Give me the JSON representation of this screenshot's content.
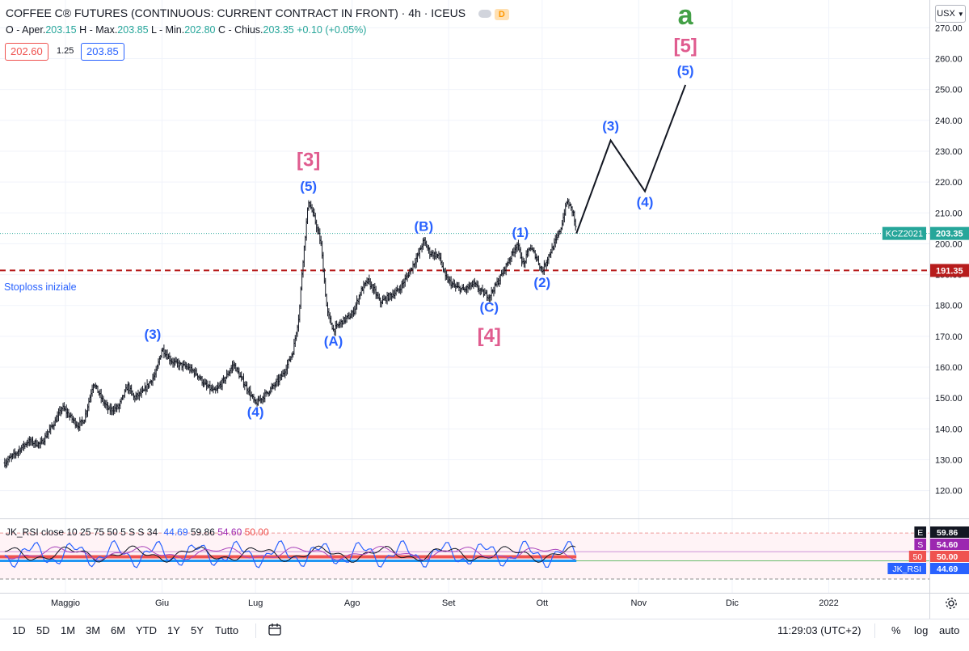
{
  "header": {
    "title": "COFFEE C® FUTURES (CONTINUOUS: CURRENT CONTRACT IN FRONT) · 4h · ICEUS",
    "badge_green": "",
    "badge_orange": "D",
    "ohlc": [
      {
        "label": "O - Aper.",
        "value": "203.15"
      },
      {
        "label": "H - Max.",
        "value": "203.85"
      },
      {
        "label": "L - Min.",
        "value": "202.80"
      },
      {
        "label": "C - Chius.",
        "value": "203.35"
      },
      {
        "label": "",
        "value": "+0.10 (+0.05%)"
      }
    ],
    "bid": "202.60",
    "spread": "1.25",
    "ask": "203.85",
    "currency": "USX"
  },
  "colors": {
    "up": "#26a69a",
    "down": "#ef5350",
    "bar": "#131722",
    "wave_blue": "#2962ff",
    "wave_pink": "#e05c8f",
    "wave_green": "#43a047",
    "stoploss": "#b71c1c"
  },
  "chart_data": {
    "type": "ohlc",
    "title": "COFFEE C® FUTURES (CONTINUOUS: CURRENT CONTRACT IN FRONT)",
    "interval": "4h",
    "exchange": "ICEUS",
    "xlabel": "",
    "ylabel": "",
    "ylim": [
      111,
      279
    ],
    "y_ticks": [
      "120.00",
      "130.00",
      "140.00",
      "150.00",
      "160.00",
      "170.00",
      "180.00",
      "190.00",
      "200.00",
      "210.00",
      "220.00",
      "230.00",
      "240.00",
      "250.00",
      "260.00",
      "270.00"
    ],
    "x_ticks": [
      "Maggio",
      "Giu",
      "Lug",
      "Ago",
      "Set",
      "Ott",
      "Nov",
      "Dic",
      "2022"
    ],
    "x_tick_days": [
      0,
      31,
      61,
      92,
      123,
      153,
      184,
      214,
      245
    ],
    "price_path": [
      [
        -19.5,
        129
      ],
      [
        -16,
        132
      ],
      [
        -12,
        136
      ],
      [
        -8,
        135
      ],
      [
        -3,
        143
      ],
      [
        -1,
        147
      ],
      [
        4,
        141
      ],
      [
        6,
        143
      ],
      [
        9,
        155
      ],
      [
        12,
        149
      ],
      [
        14,
        146
      ],
      [
        17,
        147
      ],
      [
        20,
        154
      ],
      [
        22,
        150
      ],
      [
        25,
        152
      ],
      [
        29,
        158
      ],
      [
        31,
        166
      ],
      [
        34,
        162
      ],
      [
        36,
        161
      ],
      [
        39,
        160
      ],
      [
        42,
        158
      ],
      [
        45,
        154
      ],
      [
        48,
        152
      ],
      [
        51,
        156
      ],
      [
        54,
        161
      ],
      [
        56,
        157
      ],
      [
        59,
        152
      ],
      [
        61,
        148
      ],
      [
        64,
        151
      ],
      [
        67,
        154
      ],
      [
        70,
        158
      ],
      [
        73,
        165
      ],
      [
        75,
        177
      ],
      [
        76,
        192
      ],
      [
        78,
        214
      ],
      [
        80,
        208
      ],
      [
        82,
        200
      ],
      [
        84,
        178
      ],
      [
        86,
        172
      ],
      [
        89,
        175
      ],
      [
        92,
        177
      ],
      [
        95,
        185
      ],
      [
        97,
        188
      ],
      [
        99,
        185
      ],
      [
        101,
        181
      ],
      [
        104,
        183
      ],
      [
        107,
        185
      ],
      [
        110,
        190
      ],
      [
        113,
        196
      ],
      [
        115,
        201
      ],
      [
        117,
        197
      ],
      [
        120,
        196
      ],
      [
        122,
        189
      ],
      [
        125,
        186
      ],
      [
        128,
        185
      ],
      [
        131,
        187
      ],
      [
        134,
        184
      ],
      [
        136,
        183
      ],
      [
        139,
        188
      ],
      [
        142,
        194
      ],
      [
        145,
        200
      ],
      [
        147,
        193
      ],
      [
        149,
        199
      ],
      [
        151,
        196
      ],
      [
        153,
        191
      ],
      [
        155,
        196
      ],
      [
        157,
        200
      ],
      [
        159,
        205
      ],
      [
        161,
        214
      ],
      [
        163,
        210
      ],
      [
        164,
        203.35
      ]
    ],
    "projection": [
      [
        164,
        203.35
      ],
      [
        175,
        233.5
      ],
      [
        186,
        217
      ],
      [
        199,
        251.5
      ]
    ],
    "stoploss": {
      "value": 191.35,
      "label": "Stoploss iniziale"
    },
    "last_price": {
      "value": 203.35,
      "symbol": "KCZ2021",
      "text": "203.35"
    },
    "wave_labels": [
      {
        "text": "(3)",
        "day": 28,
        "price": 166,
        "color": "blue",
        "pos": "above"
      },
      {
        "text": "(4)",
        "day": 61,
        "price": 149,
        "color": "blue",
        "pos": "below"
      },
      {
        "text": "(5)",
        "day": 78,
        "price": 214,
        "color": "blue",
        "pos": "above"
      },
      {
        "text": "[3]",
        "day": 78,
        "price": 222,
        "color": "pink",
        "pos": "above"
      },
      {
        "text": "(A)",
        "day": 86,
        "price": 172,
        "color": "blue",
        "pos": "below"
      },
      {
        "text": "(B)",
        "day": 115,
        "price": 201,
        "color": "blue",
        "pos": "above"
      },
      {
        "text": "(C)",
        "day": 136,
        "price": 183,
        "color": "blue",
        "pos": "below"
      },
      {
        "text": "[4]",
        "day": 136,
        "price": 175,
        "color": "pink",
        "pos": "below"
      },
      {
        "text": "(1)",
        "day": 146,
        "price": 199,
        "color": "blue",
        "pos": "above"
      },
      {
        "text": "(2)",
        "day": 153,
        "price": 191,
        "color": "blue",
        "pos": "below"
      },
      {
        "text": "(3)",
        "day": 175,
        "price": 233.5,
        "color": "blue",
        "pos": "above"
      },
      {
        "text": "(4)",
        "day": 186,
        "price": 217,
        "color": "blue",
        "pos": "below"
      },
      {
        "text": "(5)",
        "day": 199,
        "price": 251.5,
        "color": "blue",
        "pos": "above"
      },
      {
        "text": "[5]",
        "day": 199,
        "price": 259,
        "color": "pink",
        "pos": "above"
      },
      {
        "text": "a",
        "day": 199,
        "price": 268,
        "color": "green",
        "pos": "above"
      }
    ]
  },
  "rsi": {
    "legend_name": "JK_RSI close 10 25 75 50 5 S S 34",
    "values": [
      {
        "text": "44.69",
        "color": "#2962ff"
      },
      {
        "text": "59.86",
        "color": "#131722"
      },
      {
        "text": "54.60",
        "color": "#9c27b0"
      },
      {
        "text": "50.00",
        "color": "#ef5350"
      }
    ],
    "tags": [
      {
        "label": "E",
        "value": "59.86",
        "color": "#131722",
        "level": 59.86
      },
      {
        "label": "S",
        "value": "54.60",
        "color": "#9c27b0",
        "level": 54.6
      },
      {
        "label": "50",
        "value": "50.00",
        "color": "#ef5350",
        "level": 50.0
      },
      {
        "label": "JK_RSI",
        "value": "44.69",
        "color": "#2962ff",
        "level": 44.69
      }
    ],
    "ylim": [
      10,
      90
    ],
    "upper_band": 75,
    "lower_band": 25,
    "mid": 50
  },
  "footer": {
    "timeframes": [
      "1D",
      "5D",
      "1M",
      "3M",
      "6M",
      "YTD",
      "1Y",
      "5Y",
      "Tutto"
    ],
    "time": "11:29:03 (UTC+2)",
    "percent": "%",
    "log": "log",
    "auto": "auto"
  }
}
